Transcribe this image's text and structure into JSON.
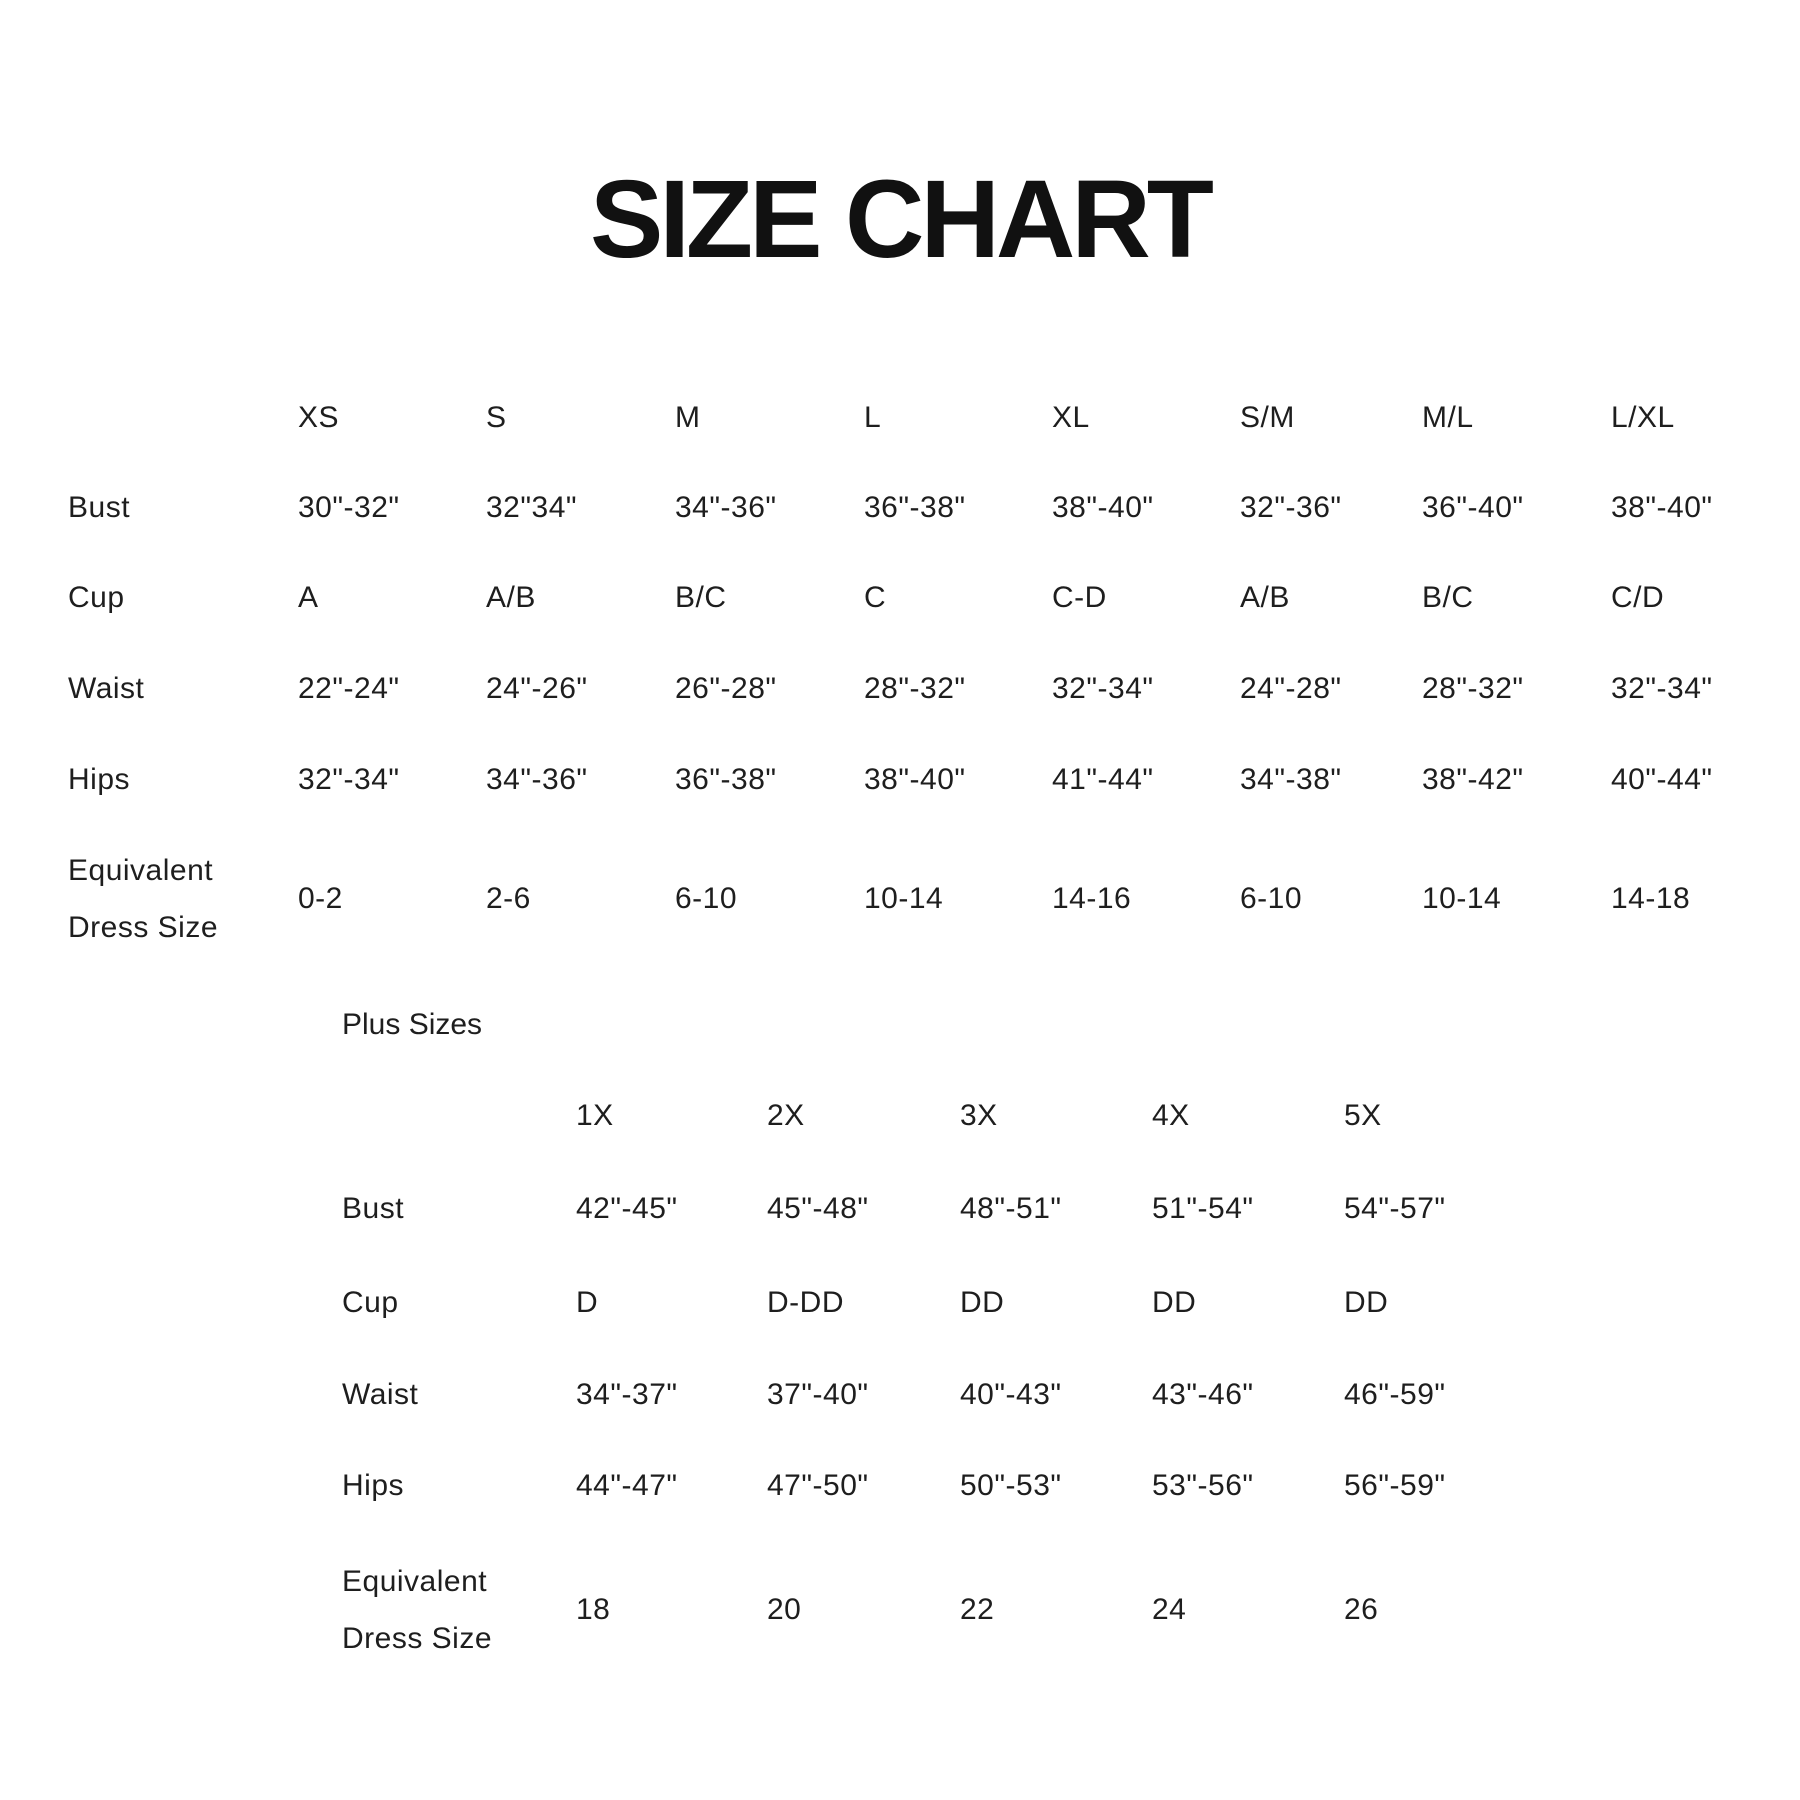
{
  "title": "SIZE CHART",
  "standard": {
    "columns": [
      "XS",
      "S",
      "M",
      "L",
      "XL",
      "S/M",
      "M/L",
      "L/XL"
    ],
    "rows": [
      {
        "label": "Bust",
        "values": [
          "30\"-32\"",
          "32\"34\"",
          "34\"-36\"",
          "36\"-38\"",
          "38\"-40\"",
          "32\"-36\"",
          "36\"-40\"",
          "38\"-40\""
        ]
      },
      {
        "label": "Cup",
        "values": [
          "A",
          "A/B",
          "B/C",
          "C",
          "C-D",
          "A/B",
          "B/C",
          "C/D"
        ]
      },
      {
        "label": "Waist",
        "values": [
          "22\"-24\"",
          "24\"-26\"",
          "26\"-28\"",
          "28\"-32\"",
          "32\"-34\"",
          "24\"-28\"",
          "28\"-32\"",
          "32\"-34\""
        ]
      },
      {
        "label": "Hips",
        "values": [
          "32\"-34\"",
          "34\"-36\"",
          "36\"-38\"",
          "38\"-40\"",
          "41\"-44\"",
          "34\"-38\"",
          "38\"-42\"",
          "40\"-44\""
        ]
      },
      {
        "label": "Equivalent\nDress Size",
        "values": [
          "0-2",
          "2-6",
          "6-10",
          "10-14",
          "14-16",
          "6-10",
          "10-14",
          "14-18"
        ]
      }
    ]
  },
  "plus": {
    "title": "Plus Sizes",
    "columns": [
      "1X",
      "2X",
      "3X",
      "4X",
      "5X"
    ],
    "rows": [
      {
        "label": "Bust",
        "values": [
          "42\"-45\"",
          "45\"-48\"",
          "48\"-51\"",
          "51\"-54\"",
          "54\"-57\""
        ]
      },
      {
        "label": "Cup",
        "values": [
          "D",
          "D-DD",
          "DD",
          "DD",
          "DD"
        ]
      },
      {
        "label": "Waist",
        "values": [
          "34\"-37\"",
          "37\"-40\"",
          "40\"-43\"",
          "43\"-46\"",
          "46\"-59\""
        ]
      },
      {
        "label": "Hips",
        "values": [
          "44\"-47\"",
          "47\"-50\"",
          "50\"-53\"",
          "53\"-56\"",
          "56\"-59\""
        ]
      },
      {
        "label": "Equivalent\nDress Size",
        "values": [
          "18",
          "20",
          "22",
          "24",
          "26"
        ]
      }
    ]
  }
}
